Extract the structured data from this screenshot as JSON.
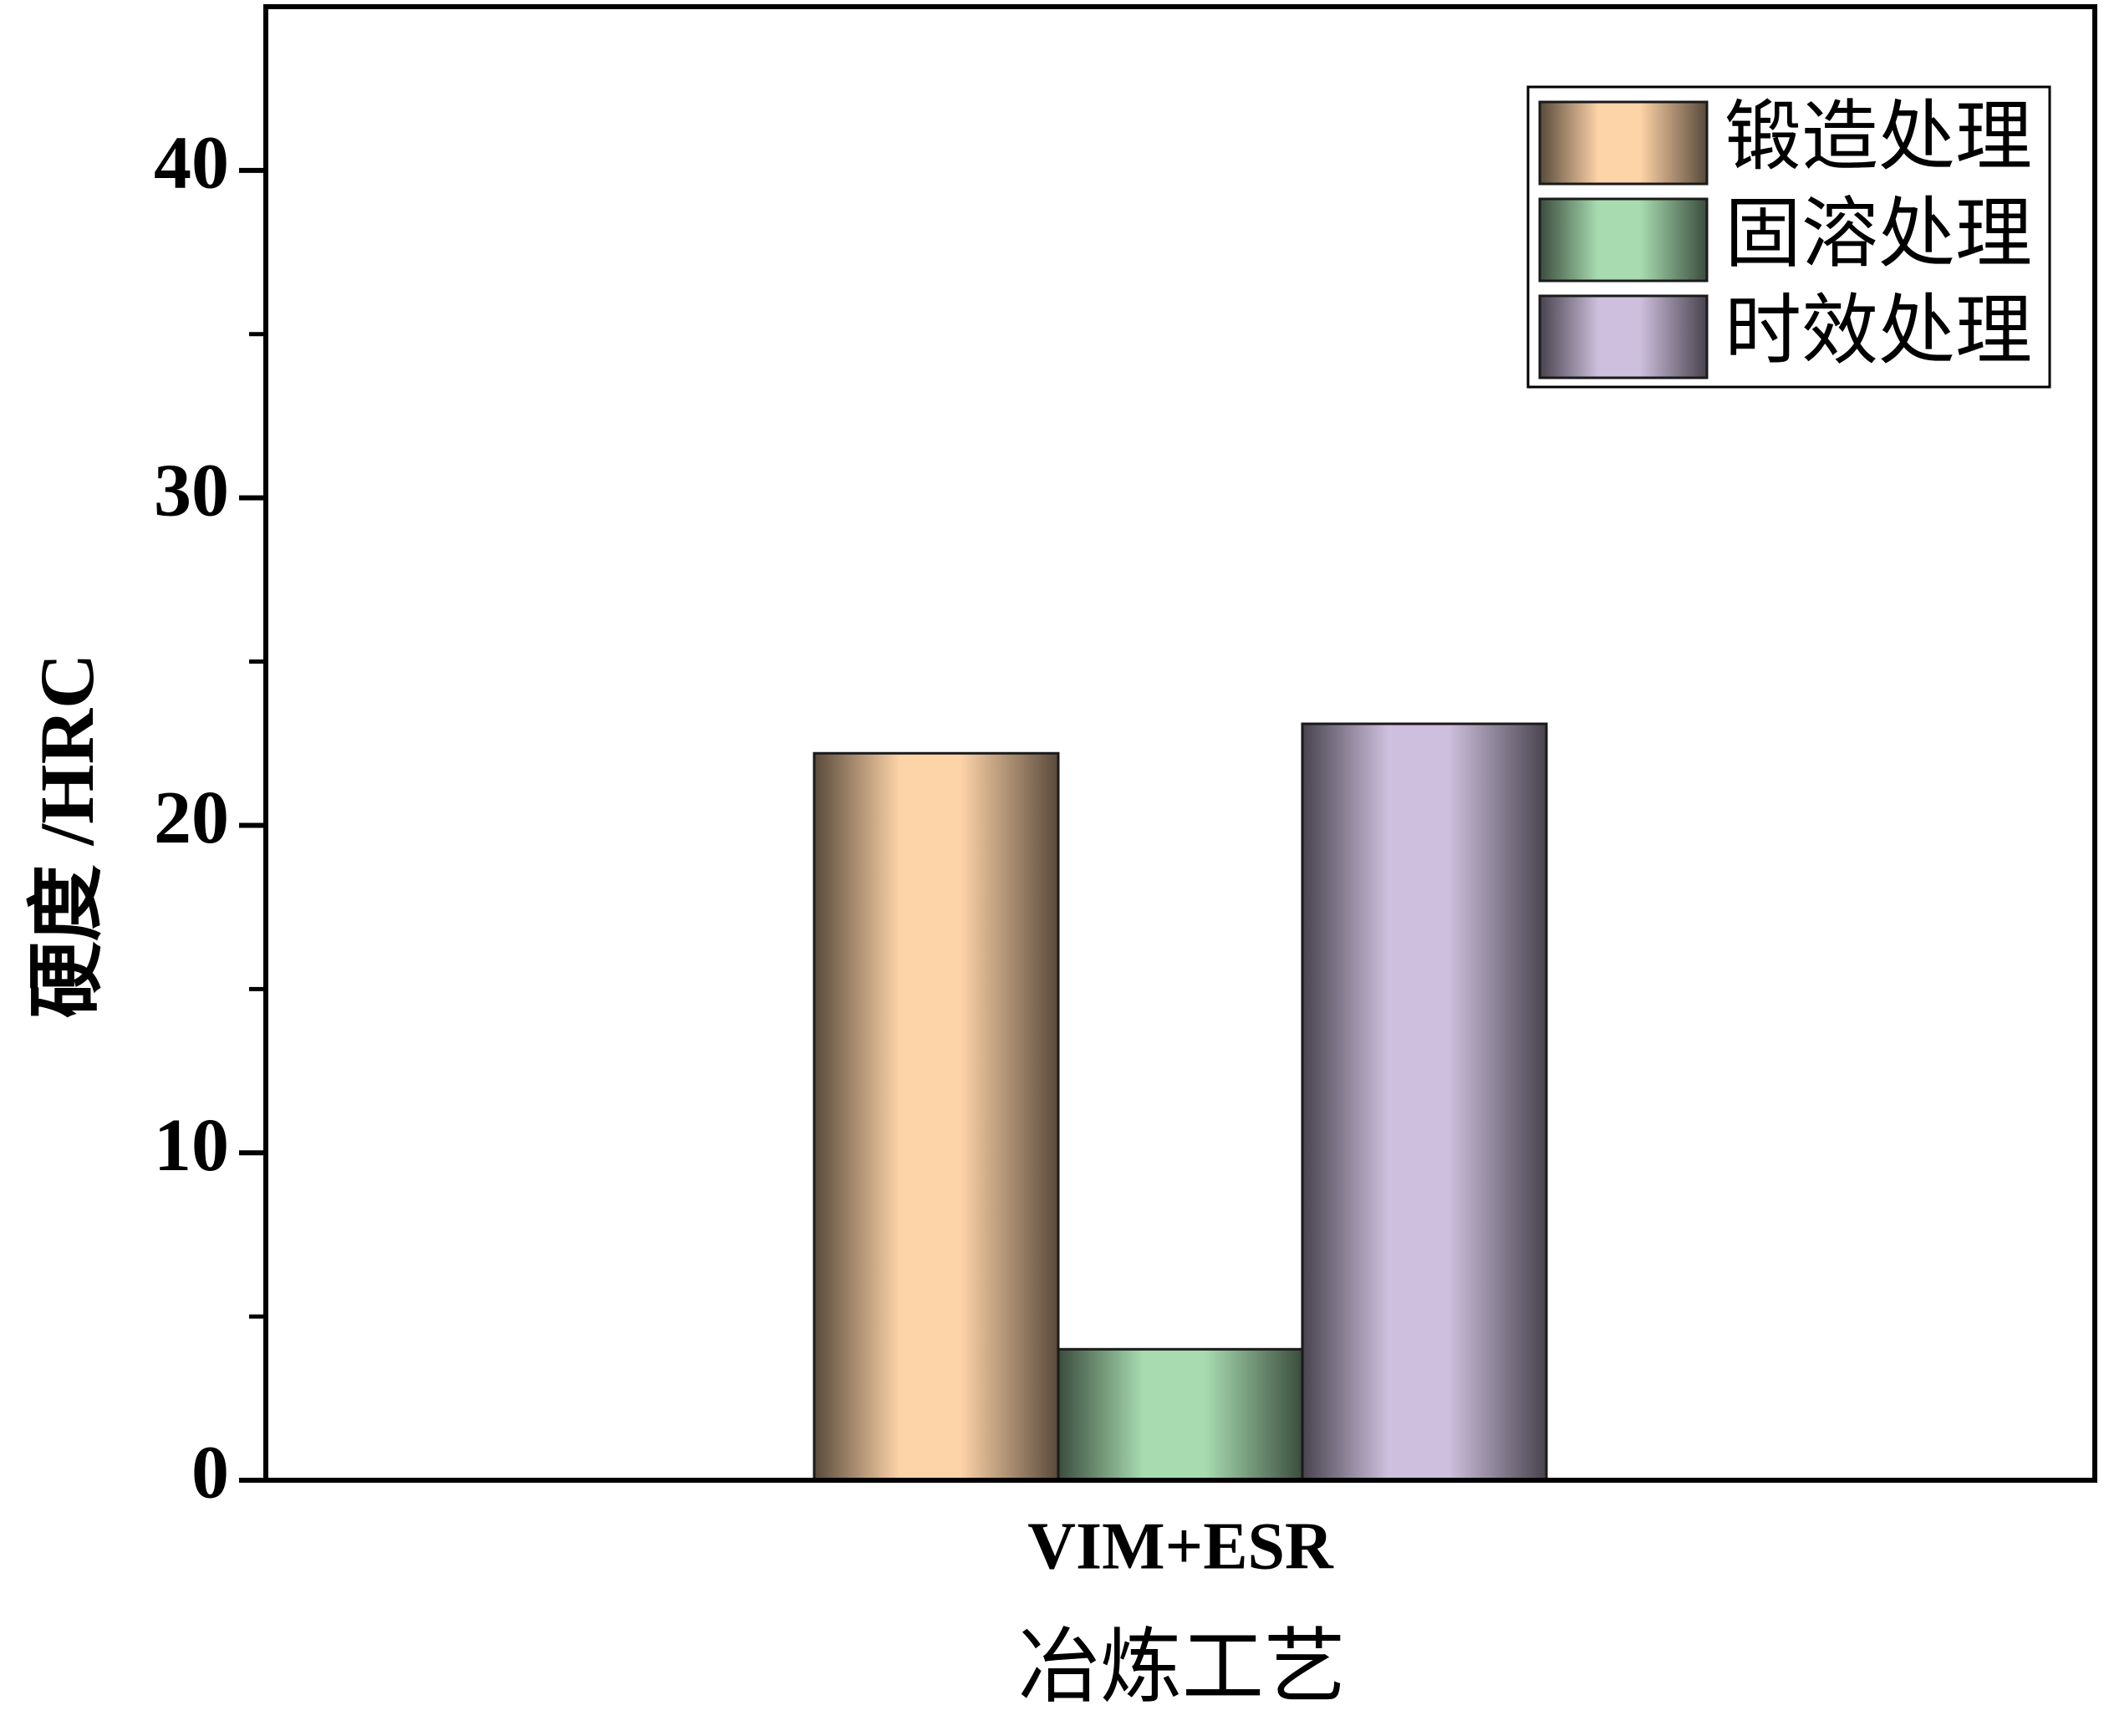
{
  "chart_data": {
    "type": "bar",
    "x_label": "冶炼工艺",
    "y_label": "硬度 /HRC",
    "categories": [
      "VIM+ESR"
    ],
    "series": [
      {
        "name": "锻造处理",
        "color": "#fdd3a8",
        "values": [
          22.2
        ]
      },
      {
        "name": "固溶处理",
        "color": "#a8dcb0",
        "values": [
          4.0
        ]
      },
      {
        "name": "时效处理",
        "color": "#cdbfdd",
        "values": [
          23.1
        ]
      }
    ],
    "ylim": [
      0,
      45
    ],
    "yticks": [
      0,
      10,
      20,
      30,
      40
    ],
    "y_minor_ticks": [
      5,
      15,
      25,
      35
    ],
    "legend": "upper right",
    "grid": false
  }
}
